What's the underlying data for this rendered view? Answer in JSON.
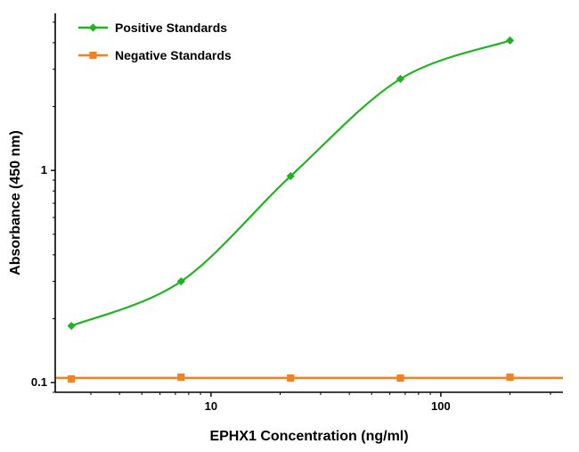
{
  "chart_data": {
    "type": "line",
    "title": "",
    "xlabel": "EPHX1 Concentration (ng/ml)",
    "ylabel": "Absorbance (450 nm)",
    "x_scale": "log",
    "y_scale": "log",
    "xlim": [
      2.1,
      340
    ],
    "ylim": [
      0.09,
      5.5
    ],
    "x_major_ticks": [
      10,
      100
    ],
    "x_major_tick_labels": [
      "10",
      "100"
    ],
    "y_major_ticks": [
      0.1,
      1
    ],
    "y_major_tick_labels": [
      "0.1",
      "1"
    ],
    "grid": false,
    "legend_position": "top-left",
    "colors": {
      "positive": "#1fb41f",
      "negative": "#f08221",
      "axis": "#000000",
      "text": "#000000"
    },
    "series": [
      {
        "name": "Positive Standards",
        "color": "#1fb41f",
        "marker": "diamond",
        "x": [
          2.47,
          7.41,
          22.2,
          66.7,
          200
        ],
        "values": [
          0.185,
          0.3,
          0.94,
          2.7,
          4.1
        ]
      },
      {
        "name": "Negative Standards",
        "color": "#f08221",
        "marker": "square",
        "x": [
          2.47,
          7.41,
          22.2,
          66.7,
          200
        ],
        "values": [
          0.104,
          0.106,
          0.105,
          0.105,
          0.106
        ]
      }
    ]
  }
}
